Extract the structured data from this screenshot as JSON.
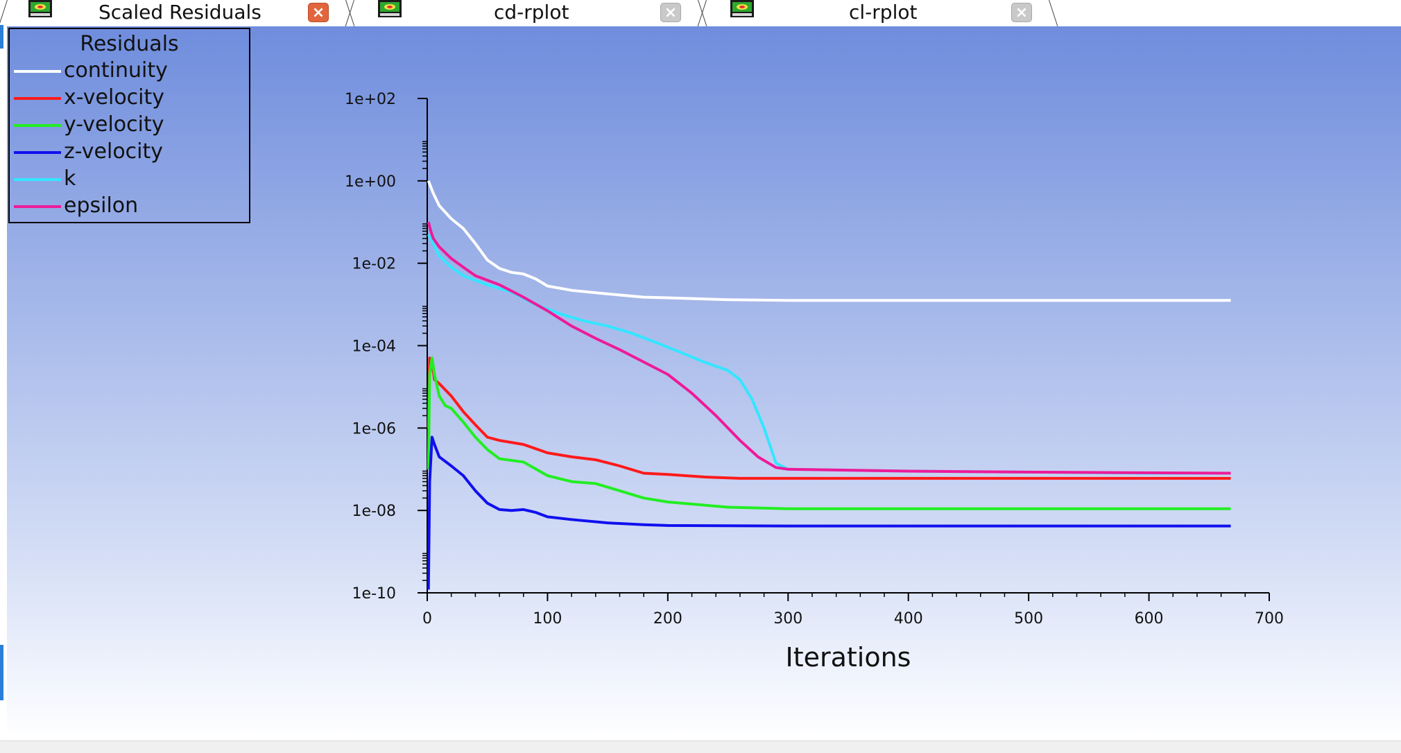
{
  "tabs": [
    {
      "label": "Scaled Residuals",
      "active": true
    },
    {
      "label": "cd-rplot",
      "active": false
    },
    {
      "label": "cl-rplot",
      "active": false
    }
  ],
  "icons": {
    "tab_icon": "graph-window-icon",
    "close_active": "close-icon",
    "close_inactive": "close-icon",
    "close_glyph": "×"
  },
  "legend": {
    "title": "Residuals",
    "entries": [
      {
        "label": "continuity",
        "color": "#ffffff"
      },
      {
        "label": "x-velocity",
        "color": "#ff1a1a"
      },
      {
        "label": "y-velocity",
        "color": "#22ee22"
      },
      {
        "label": "z-velocity",
        "color": "#1010ee"
      },
      {
        "label": "k",
        "color": "#33e6ff"
      },
      {
        "label": "epsilon",
        "color": "#ee1a99"
      }
    ]
  },
  "chart_data": {
    "type": "line",
    "xlabel": "Iterations",
    "ylabel": "",
    "xlim": [
      0,
      700
    ],
    "ylim_log10": [
      -10,
      2
    ],
    "y_scale": "log",
    "x_ticks": [
      0,
      100,
      200,
      300,
      400,
      500,
      600,
      700
    ],
    "y_ticks": [
      "1e+02",
      "1e+00",
      "1e-02",
      "1e-04",
      "1e-06",
      "1e-08",
      "1e-10"
    ],
    "legend_position": "top-left",
    "grid": false,
    "series": [
      {
        "name": "continuity",
        "color": "#ffffff",
        "points": [
          [
            1,
            1.0
          ],
          [
            5,
            0.5
          ],
          [
            10,
            0.25
          ],
          [
            20,
            0.12
          ],
          [
            30,
            0.07
          ],
          [
            40,
            0.03
          ],
          [
            50,
            0.012
          ],
          [
            60,
            0.0075
          ],
          [
            70,
            0.006
          ],
          [
            80,
            0.0055
          ],
          [
            90,
            0.0042
          ],
          [
            100,
            0.0028
          ],
          [
            120,
            0.0022
          ],
          [
            150,
            0.0018
          ],
          [
            180,
            0.0015
          ],
          [
            200,
            0.00145
          ],
          [
            250,
            0.0013
          ],
          [
            300,
            0.00125
          ],
          [
            400,
            0.00125
          ],
          [
            500,
            0.00125
          ],
          [
            600,
            0.00125
          ],
          [
            668,
            0.00125
          ]
        ]
      },
      {
        "name": "x-velocity",
        "color": "#ff1a1a",
        "points": [
          [
            1,
            1e-06
          ],
          [
            2,
            5e-05
          ],
          [
            4,
            4e-05
          ],
          [
            6,
            1.5e-05
          ],
          [
            10,
            1.2e-05
          ],
          [
            20,
            6e-06
          ],
          [
            30,
            2.5e-06
          ],
          [
            40,
            1.2e-06
          ],
          [
            50,
            6e-07
          ],
          [
            60,
            5e-07
          ],
          [
            80,
            4e-07
          ],
          [
            100,
            2.5e-07
          ],
          [
            120,
            2e-07
          ],
          [
            140,
            1.7e-07
          ],
          [
            160,
            1.2e-07
          ],
          [
            180,
            8e-08
          ],
          [
            200,
            7.5e-08
          ],
          [
            230,
            6.5e-08
          ],
          [
            260,
            6e-08
          ],
          [
            300,
            6e-08
          ],
          [
            400,
            6e-08
          ],
          [
            500,
            6e-08
          ],
          [
            600,
            6e-08
          ],
          [
            668,
            6e-08
          ]
        ]
      },
      {
        "name": "y-velocity",
        "color": "#22ee22",
        "points": [
          [
            1,
            1e-07
          ],
          [
            2,
            2e-05
          ],
          [
            4,
            5e-05
          ],
          [
            6,
            2e-05
          ],
          [
            10,
            6e-06
          ],
          [
            15,
            3.5e-06
          ],
          [
            20,
            3e-06
          ],
          [
            30,
            1.4e-06
          ],
          [
            40,
            6e-07
          ],
          [
            50,
            3e-07
          ],
          [
            60,
            1.8e-07
          ],
          [
            80,
            1.5e-07
          ],
          [
            100,
            7e-08
          ],
          [
            120,
            5e-08
          ],
          [
            140,
            4.5e-08
          ],
          [
            160,
            3e-08
          ],
          [
            180,
            2e-08
          ],
          [
            200,
            1.6e-08
          ],
          [
            250,
            1.2e-08
          ],
          [
            300,
            1.1e-08
          ],
          [
            400,
            1.1e-08
          ],
          [
            500,
            1.1e-08
          ],
          [
            600,
            1.1e-08
          ],
          [
            668,
            1.1e-08
          ]
        ]
      },
      {
        "name": "z-velocity",
        "color": "#1010ee",
        "points": [
          [
            1,
            1.2e-10
          ],
          [
            2,
            5e-08
          ],
          [
            4,
            6e-07
          ],
          [
            6,
            4e-07
          ],
          [
            10,
            2e-07
          ],
          [
            20,
            1.2e-07
          ],
          [
            30,
            7e-08
          ],
          [
            40,
            3e-08
          ],
          [
            50,
            1.5e-08
          ],
          [
            60,
            1.05e-08
          ],
          [
            70,
            1e-08
          ],
          [
            80,
            1.05e-08
          ],
          [
            90,
            9e-09
          ],
          [
            100,
            7e-09
          ],
          [
            120,
            6e-09
          ],
          [
            150,
            5e-09
          ],
          [
            180,
            4.5e-09
          ],
          [
            200,
            4.3e-09
          ],
          [
            300,
            4.2e-09
          ],
          [
            400,
            4.2e-09
          ],
          [
            500,
            4.2e-09
          ],
          [
            600,
            4.2e-09
          ],
          [
            668,
            4.2e-09
          ]
        ]
      },
      {
        "name": "k",
        "color": "#33e6ff",
        "points": [
          [
            1,
            0.05
          ],
          [
            5,
            0.03
          ],
          [
            10,
            0.015
          ],
          [
            20,
            0.008
          ],
          [
            30,
            0.005
          ],
          [
            50,
            0.003
          ],
          [
            70,
            0.002
          ],
          [
            90,
            0.001
          ],
          [
            110,
            0.0006
          ],
          [
            130,
            0.0004
          ],
          [
            150,
            0.0003
          ],
          [
            170,
            0.0002
          ],
          [
            190,
            0.00012
          ],
          [
            210,
            7e-05
          ],
          [
            230,
            4e-05
          ],
          [
            250,
            2.5e-05
          ],
          [
            260,
            1.5e-05
          ],
          [
            270,
            5e-06
          ],
          [
            280,
            1e-06
          ],
          [
            290,
            1.4e-07
          ],
          [
            300,
            1e-07
          ],
          [
            400,
            9e-08
          ],
          [
            500,
            8.5e-08
          ],
          [
            600,
            8e-08
          ],
          [
            668,
            8e-08
          ]
        ]
      },
      {
        "name": "epsilon",
        "color": "#ee1a99",
        "points": [
          [
            1,
            0.1
          ],
          [
            3,
            0.06
          ],
          [
            5,
            0.04
          ],
          [
            10,
            0.025
          ],
          [
            20,
            0.013
          ],
          [
            30,
            0.008
          ],
          [
            40,
            0.005
          ],
          [
            60,
            0.003
          ],
          [
            80,
            0.0015
          ],
          [
            100,
            0.0007
          ],
          [
            120,
            0.0003
          ],
          [
            140,
            0.00015
          ],
          [
            160,
            8e-05
          ],
          [
            180,
            4e-05
          ],
          [
            200,
            2e-05
          ],
          [
            220,
            7e-06
          ],
          [
            240,
            2e-06
          ],
          [
            260,
            5e-07
          ],
          [
            275,
            2e-07
          ],
          [
            290,
            1.1e-07
          ],
          [
            300,
            1e-07
          ],
          [
            400,
            9e-08
          ],
          [
            500,
            8.5e-08
          ],
          [
            600,
            8.2e-08
          ],
          [
            668,
            8e-08
          ]
        ]
      }
    ]
  }
}
